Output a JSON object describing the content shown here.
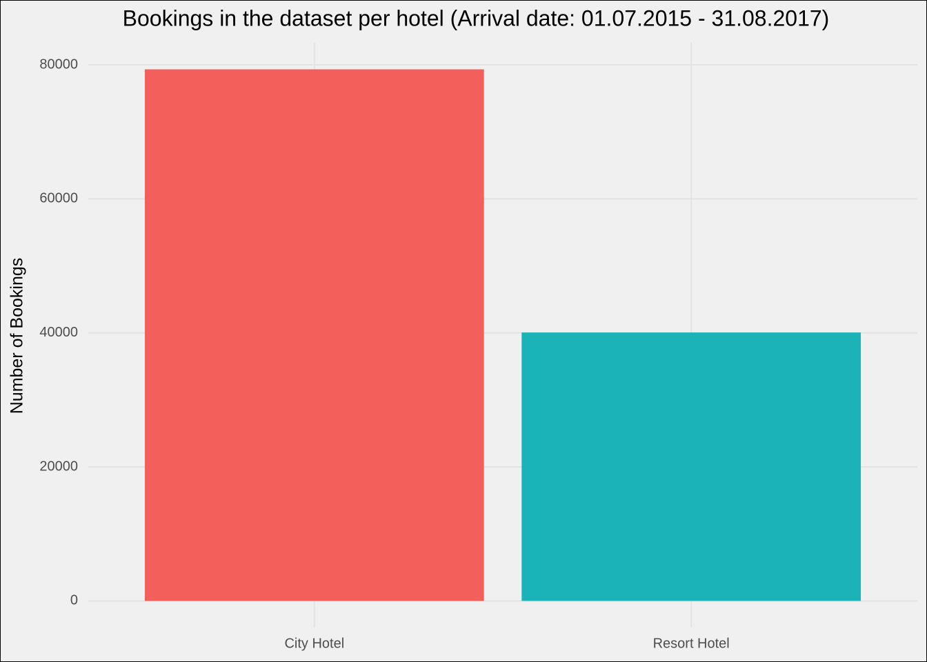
{
  "chart_data": {
    "type": "bar",
    "title": "Bookings in the dataset per hotel (Arrival date: 01.07.2015 - 31.08.2017)",
    "y_label": "Number of Bookings",
    "categories": [
      "City Hotel",
      "Resort Hotel"
    ],
    "values": [
      79330,
      40060
    ],
    "colors": [
      "#f35f5b",
      "#1ab3b8"
    ],
    "ylim": [
      -3966,
      83296
    ],
    "yticks": [
      0,
      20000,
      40000,
      60000,
      80000
    ],
    "grid": true
  }
}
